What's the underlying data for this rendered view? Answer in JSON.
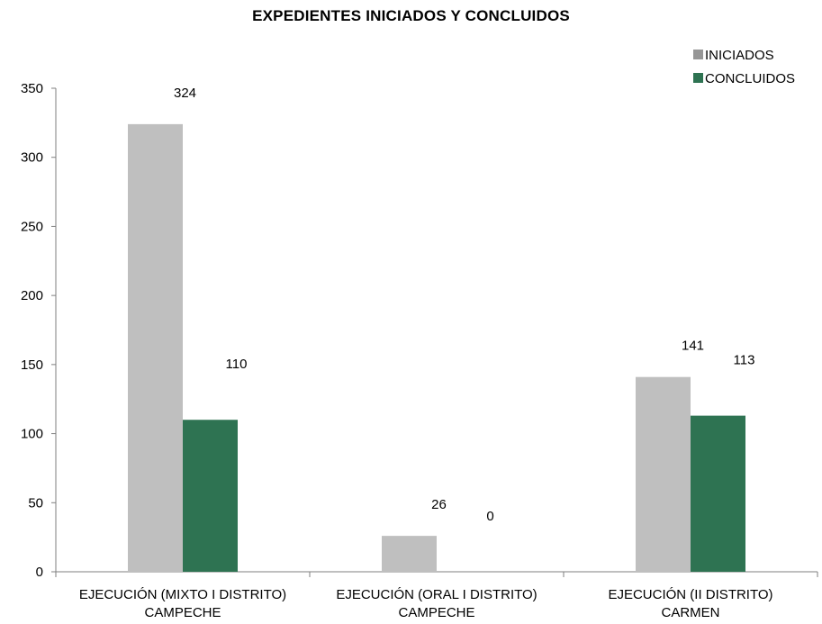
{
  "chart_data": {
    "type": "bar",
    "title": "EXPEDIENTES INICIADOS Y CONCLUIDOS",
    "categories": [
      [
        "EJECUCIÓN (MIXTO I DISTRITO)",
        "CAMPECHE"
      ],
      [
        "EJECUCIÓN (ORAL I DISTRITO)",
        "CAMPECHE"
      ],
      [
        "EJECUCIÓN (II DISTRITO)",
        "CARMEN"
      ]
    ],
    "series": [
      {
        "name": "INICIADOS",
        "values": [
          324,
          26,
          141
        ],
        "color": "#bfbfbf",
        "legend_color": "#969696"
      },
      {
        "name": "CONCLUIDOS",
        "values": [
          110,
          0,
          113
        ],
        "color": "#2e7352",
        "legend_color": "#2e7352"
      }
    ],
    "ylim": [
      0,
      350
    ],
    "yticks": [
      0,
      50,
      100,
      150,
      200,
      250,
      300,
      350
    ],
    "legend_position": "top-right",
    "grid": false
  }
}
